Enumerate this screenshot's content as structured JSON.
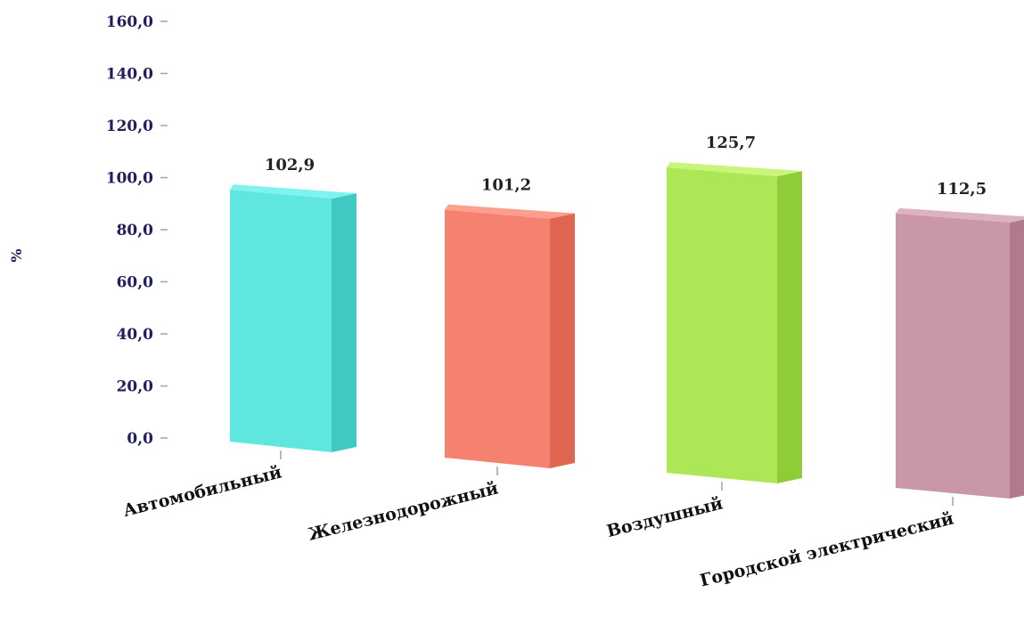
{
  "chart_data": {
    "type": "bar",
    "title": "",
    "xlabel": "",
    "ylabel": "%",
    "ylim": [
      0,
      160
    ],
    "y_ticks": [
      "0,0",
      "20,0",
      "40,0",
      "60,0",
      "80,0",
      "100,0",
      "120,0",
      "140,0",
      "160,0"
    ],
    "categories": [
      "Автомобильный",
      "Железнодорожный",
      "Воздушный",
      "Городской электрический"
    ],
    "values": [
      102.9,
      101.2,
      125.7,
      112.5
    ],
    "value_labels": [
      "102,9",
      "101,2",
      "125,7",
      "112,5"
    ],
    "colors": [
      "#5fe6de",
      "#f58270",
      "#ade657",
      "#ca97aa"
    ],
    "side_colors": [
      "#3fcbc4",
      "#df6651",
      "#8ecc38",
      "#b07b8f"
    ],
    "top_colors": [
      "#7df4ef",
      "#ff9e8e",
      "#c8f57a",
      "#dcb2c2"
    ],
    "grid": false,
    "style": "3d"
  }
}
